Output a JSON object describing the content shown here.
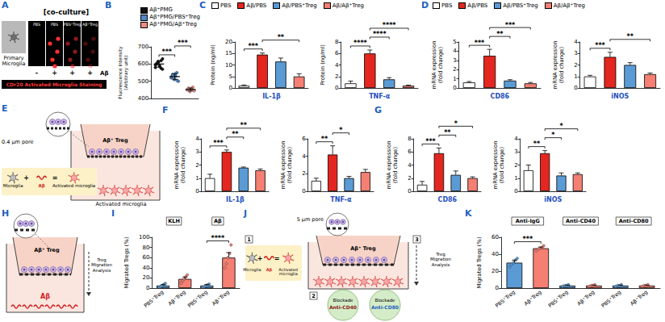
{
  "panel_labels": [
    "A",
    "B",
    "C",
    "D",
    "E",
    "F",
    "G",
    "H",
    "I",
    "J",
    "K"
  ],
  "diagrams": {
    "A": {
      "title": "[co-culture]",
      "cell_label": "Primary Microglia",
      "images": [
        {
          "label": "PBS",
          "abeta": "-"
        },
        {
          "label": "PBS",
          "abeta": "+"
        },
        {
          "label": "PBS⁺Treg",
          "abeta": "+"
        },
        {
          "label": "Aβ⁺Treg",
          "abeta": "+"
        }
      ],
      "abeta_label": "Aβ",
      "caption": "CDr20 Activated Microglia Staining"
    },
    "E": {
      "pore": "0.4 µm pore",
      "treg": "Aβ⁺ Treg",
      "equation": {
        "cell": "Microglia",
        "plus": "+",
        "stimulus": "Aβ",
        "equals": "=",
        "result": "Activated microglia"
      },
      "bottom": "Activated microglia"
    },
    "H": {
      "treg": "Aβ⁺ Treg",
      "bottom": "Aβ",
      "analysis": "Treg Migration Analysis"
    },
    "J": {
      "pore": "5 µm pore",
      "treg": "Aβ⁺ Treg",
      "steps": [
        "1",
        "2",
        "3"
      ],
      "equation": {
        "cell": "Microglia",
        "plus": "+",
        "stimulus": "Aβ",
        "equals": "=",
        "result": "Activated microglia"
      },
      "blockades": [
        {
          "title": "Blockade",
          "name": "Anti-CD40"
        },
        {
          "title": "Blockade",
          "name": "Anti-CD80"
        }
      ],
      "analysis": "Treg Migration Analysis"
    }
  },
  "chart_data": [
    {
      "type": "dot",
      "categories": [
        "Aβ⁺PMG",
        "Aβ⁺PMG/PBS⁺Treg",
        "Aβ⁺PMG/Aβ⁺Treg"
      ],
      "colors": [
        "#111111",
        "#4f86c6",
        "#f28b82"
      ],
      "values": [
        600,
        527,
        452
      ],
      "errors": [
        18,
        16,
        9
      ],
      "points": [
        [
          580,
          600,
          610,
          590,
          620,
          570,
          595,
          605,
          615,
          585,
          575,
          630
        ],
        [
          520,
          540,
          510,
          530,
          550,
          500,
          525,
          535,
          515,
          545,
          505
        ],
        [
          450,
          460,
          440,
          455,
          465,
          445
        ]
      ],
      "y_label": "Fluorescence Intensity\n(Arbitrary unit)",
      "ylim": [
        400,
        700
      ],
      "yticks": [
        400,
        500,
        600,
        700
      ],
      "grid": false,
      "legend": "top-right",
      "tick_labels": "y",
      "annotations": [
        {
          "text": "***",
          "between": [
            0,
            1
          ]
        },
        {
          "text": "***",
          "between": [
            1,
            2
          ]
        }
      ]
    },
    {
      "type": "bar",
      "x_label": "IL-1β",
      "y_label": "Protein (ng/ml)",
      "categories": [
        "PBS",
        "Aβ/PBS",
        "Aβ/PBS⁺Treg",
        "Aβ/Aβ⁺Treg"
      ],
      "colors": [
        "#ffffff",
        "#e3261f",
        "#5b9bd5",
        "#f47f72"
      ],
      "values": [
        1,
        14.5,
        11.5,
        5
      ],
      "errors": [
        0.3,
        0.7,
        1.5,
        1.2
      ],
      "ylim": [
        0,
        20
      ],
      "yticks": [
        0,
        5,
        10,
        15,
        20
      ],
      "grid": false,
      "legend": "top",
      "tick_labels": "y",
      "annotations": [
        {
          "text": "***",
          "between": [
            0,
            1
          ]
        },
        {
          "text": "**",
          "between": [
            1,
            3
          ]
        }
      ]
    },
    {
      "type": "bar",
      "x_label": "TNF-α",
      "y_label": "Protein (ng/ml)",
      "categories": [
        "PBS",
        "Aβ/PBS",
        "Aβ/PBS⁺Treg",
        "Aβ/Aβ⁺Treg"
      ],
      "colors": [
        "#ffffff",
        "#e3261f",
        "#5b9bd5",
        "#f47f72"
      ],
      "values": [
        0.8,
        6,
        1.5,
        0.4
      ],
      "errors": [
        0.4,
        0.6,
        0.3,
        0.1
      ],
      "ylim": [
        0,
        8
      ],
      "yticks": [
        0,
        2,
        4,
        6,
        8
      ],
      "grid": false,
      "tick_labels": "y",
      "annotations": [
        {
          "text": "****",
          "between": [
            0,
            1
          ]
        },
        {
          "text": "****",
          "between": [
            1,
            2
          ]
        },
        {
          "text": "****",
          "between": [
            1,
            3
          ]
        }
      ]
    },
    {
      "type": "bar",
      "x_label": "CD86",
      "y_label": "mRNA expression\n(fold change)",
      "categories": [
        "PBS",
        "Aβ/PBS",
        "Aβ/PBS⁺Treg",
        "Aβ/Aβ⁺Treg"
      ],
      "colors": [
        "#ffffff",
        "#e3261f",
        "#5b9bd5",
        "#f47f72"
      ],
      "values": [
        0.6,
        3.5,
        0.8,
        0.5
      ],
      "errors": [
        0.1,
        0.7,
        0.1,
        0.1
      ],
      "ylim": [
        0,
        5
      ],
      "yticks": [
        0,
        1,
        2,
        3,
        4,
        5
      ],
      "grid": false,
      "legend": "top",
      "tick_labels": "y",
      "annotations": [
        {
          "text": "***",
          "between": [
            0,
            1
          ]
        },
        {
          "text": "**",
          "between": [
            1,
            2
          ]
        },
        {
          "text": "***",
          "between": [
            1,
            3
          ]
        }
      ]
    },
    {
      "type": "bar",
      "x_label": "iNOS",
      "y_label": "mRNA expression\n(fold change)",
      "categories": [
        "PBS",
        "Aβ/PBS",
        "Aβ/PBS⁺Treg",
        "Aβ/Aβ⁺Treg"
      ],
      "colors": [
        "#ffffff",
        "#e3261f",
        "#5b9bd5",
        "#f47f72"
      ],
      "values": [
        1,
        2.7,
        2,
        1.2
      ],
      "errors": [
        0.1,
        0.4,
        0.2,
        0.1
      ],
      "ylim": [
        0,
        4
      ],
      "yticks": [
        0,
        1,
        2,
        3,
        4
      ],
      "grid": false,
      "tick_labels": "y",
      "annotations": [
        {
          "text": "***",
          "between": [
            0,
            1
          ]
        },
        {
          "text": "**",
          "between": [
            1,
            3
          ]
        }
      ]
    },
    {
      "type": "bar",
      "x_label": "IL-1β",
      "y_label": "mRNA expression\n(fold change)",
      "categories": [
        "PBS",
        "Aβ/PBS",
        "Aβ/PBS⁺Treg",
        "Aβ/Aβ⁺Treg"
      ],
      "colors": [
        "#ffffff",
        "#e3261f",
        "#5b9bd5",
        "#f47f72"
      ],
      "values": [
        1,
        3,
        1.8,
        1.6
      ],
      "errors": [
        0.3,
        0.15,
        0.05,
        0.1
      ],
      "ylim": [
        0,
        4
      ],
      "yticks": [
        0,
        1,
        2,
        3,
        4
      ],
      "grid": false,
      "tick_labels": "y",
      "annotations": [
        {
          "text": "***",
          "between": [
            0,
            1
          ]
        },
        {
          "text": "**",
          "between": [
            1,
            2
          ]
        },
        {
          "text": "**",
          "between": [
            1,
            3
          ]
        }
      ]
    },
    {
      "type": "bar",
      "x_label": "TNF-α",
      "y_label": "mRNA expression\n(fold change)",
      "categories": [
        "PBS",
        "Aβ/PBS",
        "Aβ/PBS⁺Treg",
        "Aβ/Aβ⁺Treg"
      ],
      "colors": [
        "#ffffff",
        "#e3261f",
        "#5b9bd5",
        "#f47f72"
      ],
      "values": [
        1.2,
        4.2,
        1.5,
        2.2
      ],
      "errors": [
        0.3,
        1,
        0.2,
        0.3
      ],
      "ylim": [
        0,
        6
      ],
      "yticks": [
        0,
        2,
        4,
        6
      ],
      "grid": false,
      "tick_labels": "y",
      "annotations": [
        {
          "text": "**",
          "between": [
            0,
            1
          ]
        },
        {
          "text": "*",
          "between": [
            1,
            2
          ]
        }
      ]
    },
    {
      "type": "bar",
      "x_label": "CD86",
      "y_label": "mRNA expression\n(fold change)",
      "categories": [
        "PBS",
        "Aβ/PBS",
        "Aβ/PBS⁺Treg",
        "Aβ/Aβ⁺Treg"
      ],
      "colors": [
        "#ffffff",
        "#e3261f",
        "#5b9bd5",
        "#f47f72"
      ],
      "values": [
        1,
        5.8,
        2.5,
        2
      ],
      "errors": [
        0.5,
        0.8,
        0.6,
        0.2
      ],
      "ylim": [
        0,
        8
      ],
      "yticks": [
        0,
        2,
        4,
        6,
        8
      ],
      "grid": false,
      "tick_labels": "y",
      "annotations": [
        {
          "text": "***",
          "between": [
            0,
            1
          ]
        },
        {
          "text": "**",
          "between": [
            1,
            2
          ]
        },
        {
          "text": "*",
          "between": [
            1,
            3
          ]
        }
      ]
    },
    {
      "type": "bar",
      "x_label": "iNOS",
      "y_label": "mRNA expression\n(fold change)",
      "categories": [
        "PBS",
        "Aβ/PBS",
        "Aβ/PBS⁺Treg",
        "Aβ/Aβ⁺Treg"
      ],
      "colors": [
        "#ffffff",
        "#e3261f",
        "#5b9bd5",
        "#f47f72"
      ],
      "values": [
        1.6,
        2.9,
        1.2,
        1.3
      ],
      "errors": [
        0.4,
        0.2,
        0.2,
        0.1
      ],
      "ylim": [
        0,
        4
      ],
      "yticks": [
        0,
        1,
        2,
        3,
        4
      ],
      "grid": false,
      "tick_labels": "y",
      "annotations": [
        {
          "text": "**",
          "between": [
            0,
            1
          ]
        },
        {
          "text": "*",
          "between": [
            1,
            2
          ]
        },
        {
          "text": "*",
          "between": [
            1,
            3
          ]
        }
      ]
    },
    {
      "type": "bar",
      "y_label": "Migrated Tregs (%)",
      "categories": [
        "PBS⁺Treg",
        "Aβ⁺Treg",
        "PBS⁺Treg",
        "Aβ⁺Treg"
      ],
      "colors": [
        "#5b9bd5",
        "#f47f72",
        "#5b9bd5",
        "#f47f72"
      ],
      "values": [
        5,
        18,
        5,
        60
      ],
      "errors": [
        2,
        4,
        2,
        10
      ],
      "points": [
        [
          2,
          3,
          5,
          7,
          9
        ],
        [
          10,
          14,
          18,
          22,
          26
        ],
        [
          2,
          3,
          5,
          6,
          8
        ],
        [
          40,
          48,
          60,
          68,
          85
        ]
      ],
      "ylim": [
        0,
        100
      ],
      "yticks": [
        0,
        20,
        40,
        60,
        80,
        100
      ],
      "grid": false,
      "group_labels": [
        {
          "text": "KLH",
          "span": [
            0,
            1
          ]
        },
        {
          "text": "Aβ",
          "span": [
            2,
            3
          ]
        }
      ],
      "annotations": [
        {
          "text": "****",
          "between": [
            2,
            3
          ]
        }
      ]
    },
    {
      "type": "bar",
      "y_label": "Migrated Tregs (%)",
      "categories": [
        "PBS⁺Treg",
        "Aβ⁺Treg",
        "PBS⁺Treg",
        "Aβ⁺Treg",
        "PBS⁺Treg",
        "Aβ⁺Treg"
      ],
      "colors": [
        "#5b9bd5",
        "#f47f72",
        "#5b9bd5",
        "#f47f72",
        "#5b9bd5",
        "#f47f72"
      ],
      "values": [
        30,
        47,
        3,
        3,
        3,
        3
      ],
      "errors": [
        3,
        1.5,
        0.5,
        0.5,
        0.5,
        0.5
      ],
      "points": [
        [
          25,
          28,
          30,
          33,
          35
        ],
        [
          44,
          46,
          47,
          48,
          50
        ],
        [
          2,
          3,
          3,
          4
        ],
        [
          2,
          3,
          3,
          4
        ],
        [
          2,
          3,
          3,
          4
        ],
        [
          2,
          3,
          3,
          4
        ]
      ],
      "ylim": [
        0,
        60
      ],
      "yticks": [
        0,
        20,
        40,
        60
      ],
      "grid": false,
      "group_labels": [
        {
          "text": "Anti-IgG",
          "span": [
            0,
            1
          ]
        },
        {
          "text": "Anti-CD40",
          "span": [
            2,
            3
          ]
        },
        {
          "text": "Anti-CD80",
          "span": [
            4,
            5
          ]
        }
      ],
      "annotations": [
        {
          "text": "***",
          "between": [
            0,
            1
          ]
        }
      ]
    }
  ]
}
